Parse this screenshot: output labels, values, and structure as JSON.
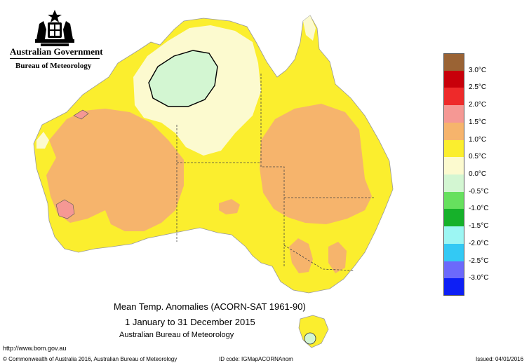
{
  "header": {
    "org_line1": "Australian Government",
    "org_line2": "Bureau of Meteorology"
  },
  "caption": {
    "title": "Mean Temp. Anomalies (ACORN-SAT 1961-90)",
    "period": "1 January to 31 December 2015",
    "source": "Australian Bureau of Meteorology"
  },
  "legend": {
    "unit": "°C",
    "items": [
      {
        "label": "3.0°C",
        "color": "#9a6334"
      },
      {
        "label": "2.5°C",
        "color": "#c8000a"
      },
      {
        "label": "2.0°C",
        "color": "#ee2a2a"
      },
      {
        "label": "1.5°C",
        "color": "#f59894"
      },
      {
        "label": "1.0°C",
        "color": "#f6b46c"
      },
      {
        "label": "0.5°C",
        "color": "#fbee2e"
      },
      {
        "label": "0.0°C",
        "color": "#fcfacf"
      },
      {
        "label": "-0.5°C",
        "color": "#d3f6d2"
      },
      {
        "label": "-1.0°C",
        "color": "#66e05e"
      },
      {
        "label": "-1.5°C",
        "color": "#16b12a"
      },
      {
        "label": "-2.0°C",
        "color": "#9cf6f3"
      },
      {
        "label": "-2.5°C",
        "color": "#33c9f4"
      },
      {
        "label": "-3.0°C",
        "color": "#6c69fb"
      },
      {
        "label": "",
        "color": "#0d1ff5"
      }
    ]
  },
  "footer": {
    "url": "http://www.bom.gov.au",
    "copyright": "© Commonwealth of Australia 2016, Australian Bureau of Meteorology",
    "id_code": "ID code: IGMapACORNAnom",
    "issued": "Issued: 04/01/2016"
  },
  "map_colors": {
    "land_base": "#fbee2e",
    "warm_1_0": "#f6b46c",
    "warm_1_5": "#f59894",
    "neutral_0_0": "#fcfacf",
    "cool_minus_0_5": "#d3f6d2",
    "state_border": "#444444"
  }
}
